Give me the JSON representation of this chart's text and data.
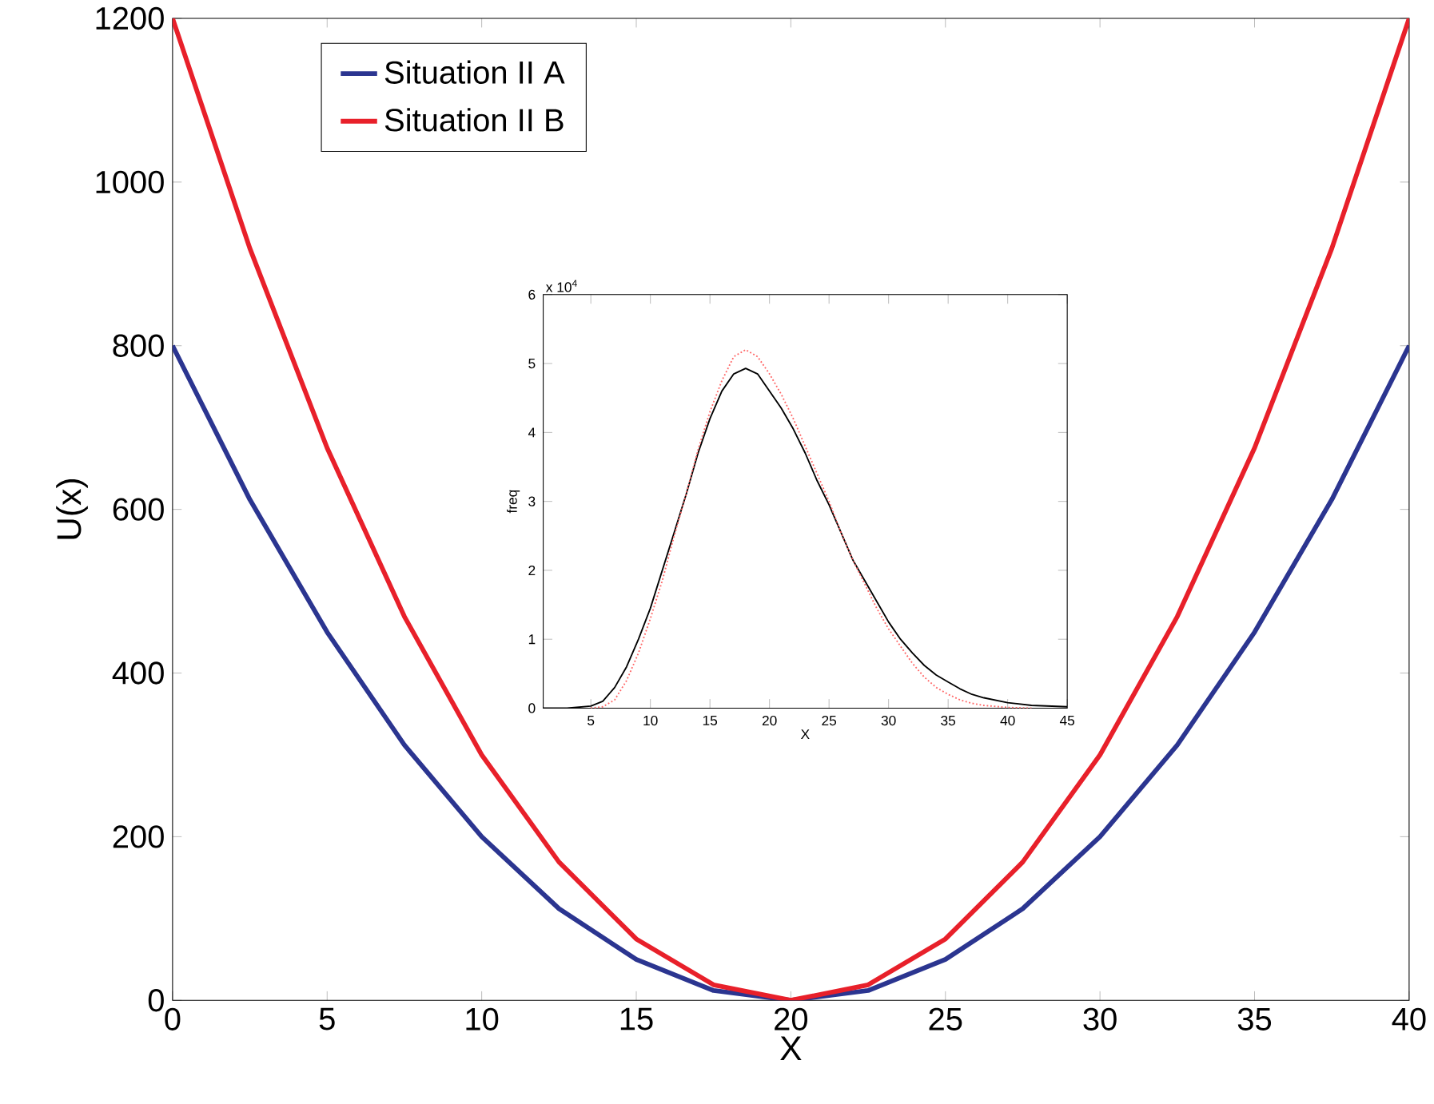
{
  "chart_data": [
    {
      "type": "line",
      "xlabel": "X",
      "ylabel": "U(x)",
      "xlim": [
        0,
        40
      ],
      "ylim": [
        0,
        1200
      ],
      "xticks": [
        0,
        5,
        10,
        15,
        20,
        25,
        30,
        35,
        40
      ],
      "yticks": [
        0,
        200,
        400,
        600,
        800,
        1000,
        1200
      ],
      "legend": "top left",
      "marker": "none",
      "line_style": "solid",
      "x": [
        0,
        2.5,
        5,
        7.5,
        10,
        12.5,
        15,
        17.5,
        20,
        22.5,
        25,
        27.5,
        30,
        32.5,
        35,
        37.5,
        40
      ],
      "series": [
        {
          "name": "Situation II A",
          "color": "#2b3590",
          "values": [
            800,
            612,
            450,
            312,
            200,
            112,
            50,
            12,
            0,
            12,
            50,
            112,
            200,
            312,
            450,
            612,
            800
          ]
        },
        {
          "name": "Situation II B",
          "color": "#e8202a",
          "values": [
            1200,
            919,
            675,
            469,
            300,
            169,
            75,
            19,
            0,
            19,
            75,
            169,
            300,
            469,
            675,
            919,
            1200
          ]
        }
      ]
    },
    {
      "type": "line",
      "xlabel": "X",
      "ylabel": "freq",
      "xlim": [
        1,
        45
      ],
      "ylim": [
        0,
        6
      ],
      "xticks": [
        5,
        10,
        15,
        20,
        25,
        30,
        35,
        40,
        45
      ],
      "yticks": [
        0,
        1,
        2,
        3,
        4,
        5,
        6
      ],
      "marker": "none",
      "annotations": [
        "x 10$^{4}$"
      ],
      "x": [
        1,
        3,
        5,
        6,
        7,
        8,
        9,
        10,
        11,
        12,
        13,
        14,
        15,
        16,
        17,
        18,
        19,
        20,
        21,
        22,
        23,
        24,
        25,
        26,
        27,
        28,
        29,
        30,
        31,
        32,
        33,
        34,
        35,
        36,
        37,
        38,
        40,
        42,
        45
      ],
      "series": [
        {
          "color": "#000000",
          "line_style": "solid",
          "values": [
            0,
            0,
            0.03,
            0.1,
            0.3,
            0.6,
            1.0,
            1.45,
            2.0,
            2.55,
            3.1,
            3.7,
            4.2,
            4.6,
            4.85,
            4.93,
            4.85,
            4.6,
            4.35,
            4.05,
            3.7,
            3.3,
            2.95,
            2.55,
            2.15,
            1.85,
            1.55,
            1.25,
            1.0,
            0.8,
            0.62,
            0.48,
            0.38,
            0.28,
            0.2,
            0.15,
            0.08,
            0.04,
            0.02
          ]
        },
        {
          "color": "#ff6666",
          "line_style": "dotted",
          "values": [
            null,
            null,
            0,
            0.02,
            0.12,
            0.4,
            0.8,
            1.3,
            1.85,
            2.5,
            3.1,
            3.75,
            4.3,
            4.75,
            5.1,
            5.2,
            5.1,
            4.85,
            4.55,
            4.2,
            3.8,
            3.4,
            3.0,
            2.55,
            2.15,
            1.8,
            1.45,
            1.15,
            0.9,
            0.65,
            0.45,
            0.3,
            0.2,
            0.12,
            0.07,
            0.04,
            0.01,
            0,
            null
          ]
        }
      ]
    }
  ]
}
